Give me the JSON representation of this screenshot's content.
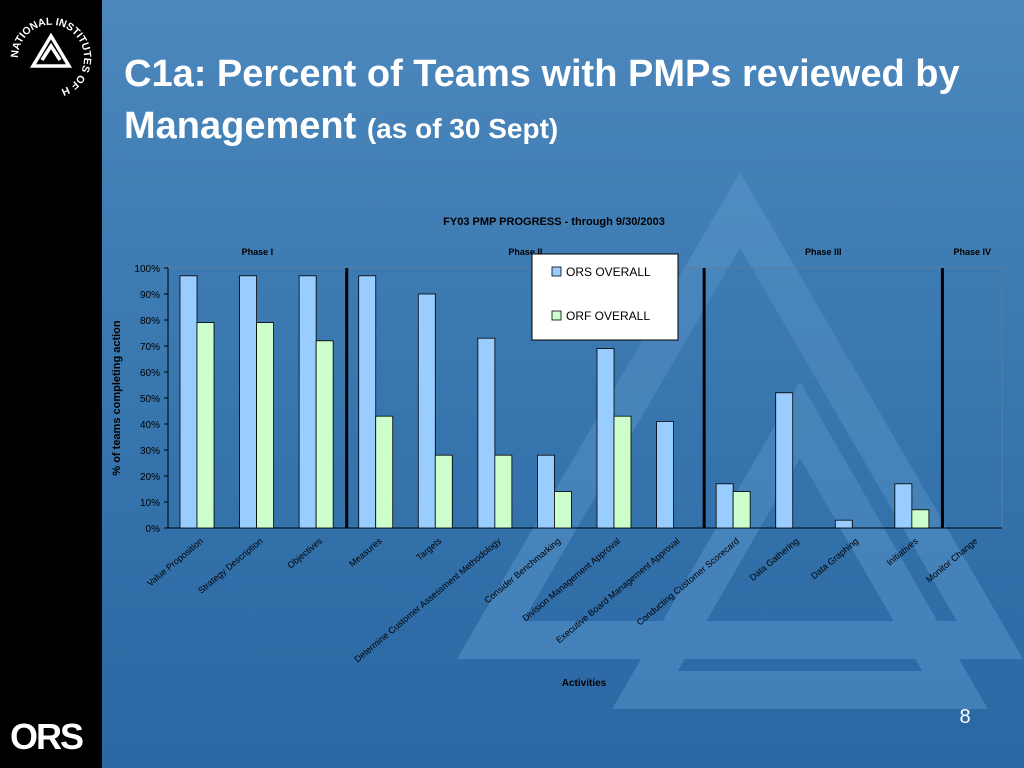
{
  "slide": {
    "title_main": "C1a:  Percent of Teams with PMPs reviewed by Management",
    "title_sub": "(as of 30 Sept)",
    "page_number": "8",
    "logo_nih_text": "NATIONAL INSTITUTES OF HEALTH",
    "logo_ors_text": "ORS"
  },
  "chart_data": {
    "type": "bar",
    "title": "FY03 PMP PROGRESS - through 9/30/2003",
    "xlabel": "Activities",
    "ylabel": "% of teams completing action",
    "ylim": [
      0,
      100
    ],
    "yticks": [
      "0%",
      "10%",
      "20%",
      "30%",
      "40%",
      "50%",
      "60%",
      "70%",
      "80%",
      "90%",
      "100%"
    ],
    "categories": [
      "Value Proposition",
      "Strategy Description",
      "Objectives",
      "Measures",
      "Targets",
      "Determine Customer Assessment Methodology",
      "Consider Benchmarking",
      "Division Management Approval",
      "Executive Board Management Approval",
      "Conducting Customer Scorecard",
      "Data Gathering",
      "Data Graphing",
      "Initiatives",
      "Monitor Change"
    ],
    "series": [
      {
        "name": "ORS OVERALL",
        "color": "#99ccff",
        "values": [
          97,
          97,
          97,
          97,
          90,
          73,
          28,
          69,
          41,
          17,
          52,
          3,
          17,
          0
        ]
      },
      {
        "name": "ORF OVERALL",
        "color": "#ccffcc",
        "values": [
          79,
          79,
          72,
          43,
          28,
          28,
          14,
          43,
          0,
          14,
          0,
          0,
          7,
          0
        ]
      }
    ],
    "phases": [
      {
        "label": "Phase I"
      },
      {
        "label": "Phase II"
      },
      {
        "label": "Phase III"
      },
      {
        "label": "Phase IV"
      }
    ],
    "phase_dividers_after_category": [
      2,
      8,
      12
    ],
    "legend_position": "top-center",
    "grid": false
  }
}
